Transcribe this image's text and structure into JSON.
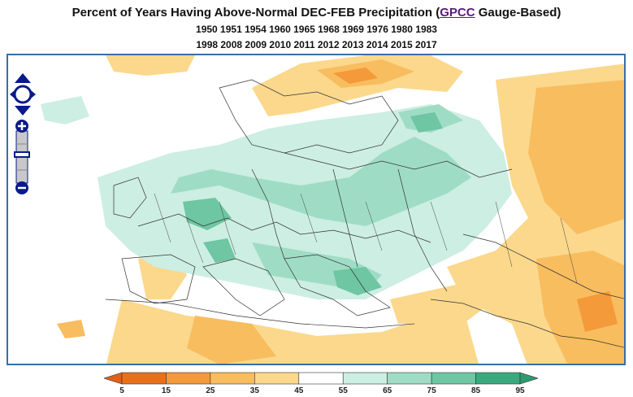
{
  "header": {
    "title_prefix": "Percent of Years Having Above-Normal DEC-FEB Precipitation (",
    "title_link": "GPCC",
    "title_suffix": " Gauge-Based)",
    "years_line_1": "1950 1951 1954 1960 1965 1968 1969 1976 1980 1983",
    "years_line_2": "1998 2008 2009 2010 2011 2012 2013 2014 2015 2017"
  },
  "map": {
    "region": "Europe and Mediterranean",
    "controls": {
      "pan": "pan-arrows-icon",
      "zoom_in": "zoom-in-icon",
      "zoom_out": "zoom-out-icon"
    }
  },
  "legend": {
    "labels": [
      "5",
      "15",
      "25",
      "35",
      "45",
      "55",
      "65",
      "75",
      "85",
      "95"
    ],
    "colors": [
      "#e8701a",
      "#f49a3a",
      "#f8bd5f",
      "#fbd88c",
      "#ffffff",
      "#cdeee3",
      "#9fdcc6",
      "#6ec6a3",
      "#3aaa7e"
    ],
    "under_color": "#e0601a",
    "over_color": "#2e9a6e"
  }
}
